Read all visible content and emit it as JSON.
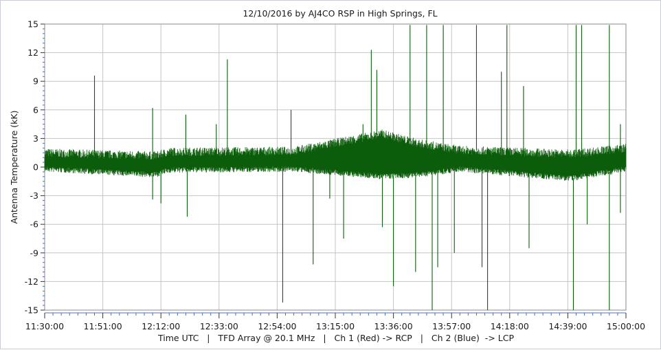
{
  "chart_data": {
    "type": "line",
    "title": "12/10/2016  by  AJ4CO RSP  in  High Springs, FL",
    "ylabel": "Antenna Temperature (kK)",
    "xlabel": "Time UTC   |   TFD Array @ 20.1 MHz   |   Ch 1 (Red) -> RCP   |   Ch 2 (Blue)  -> LCP",
    "ylim": [
      -15,
      15
    ],
    "yticks": [
      15,
      12,
      9,
      6,
      3,
      0,
      -3,
      -6,
      -9,
      -12,
      -15
    ],
    "ytick_labels": [
      "15",
      "12",
      "9",
      "6",
      "3",
      "0",
      "-3",
      "-6",
      "-9",
      "-12",
      "-15"
    ],
    "xlim_minutes": [
      690,
      900
    ],
    "xticks_minutes": [
      690,
      711,
      732,
      753,
      774,
      795,
      816,
      837,
      858,
      879,
      900
    ],
    "xtick_labels": [
      "11:30:00",
      "11:51:00",
      "12:12:00",
      "12:33:00",
      "12:54:00",
      "13:15:00",
      "13:36:00",
      "13:57:00",
      "14:18:00",
      "14:39:00",
      "15:00:00"
    ],
    "grid": true,
    "series": [
      {
        "color": "#0b5d0b",
        "baseline_kK": [
          {
            "t": "11:30:00",
            "low": -0.2,
            "high": 1.5
          },
          {
            "t": "12:10:00",
            "low": -0.8,
            "high": 1.2
          },
          {
            "t": "12:15:00",
            "low": -0.3,
            "high": 1.6
          },
          {
            "t": "13:00:00",
            "low": -0.2,
            "high": 1.7
          },
          {
            "t": "13:32:00",
            "low": -1.0,
            "high": 3.5
          },
          {
            "t": "13:45:00",
            "low": -0.8,
            "high": 2.5
          },
          {
            "t": "14:00:00",
            "low": -0.2,
            "high": 1.8
          },
          {
            "t": "14:40:00",
            "low": -1.2,
            "high": 1.4
          },
          {
            "t": "15:00:00",
            "low": -0.2,
            "high": 2.0
          }
        ],
        "spikes_kK": [
          {
            "t": "11:48:00",
            "value": 9.6
          },
          {
            "t": "12:09:00",
            "value": 6.2
          },
          {
            "t": "12:09:00",
            "value": -3.4
          },
          {
            "t": "12:12:00",
            "value": -3.8
          },
          {
            "t": "12:21:00",
            "value": 5.5
          },
          {
            "t": "12:21:30",
            "value": -5.2
          },
          {
            "t": "12:36:00",
            "value": 11.3
          },
          {
            "t": "12:32:00",
            "value": 4.5
          },
          {
            "t": "12:56:00",
            "value": -14.2
          },
          {
            "t": "12:59:00",
            "value": 6.0
          },
          {
            "t": "13:07:00",
            "value": -10.2
          },
          {
            "t": "13:13:00",
            "value": -3.3
          },
          {
            "t": "13:18:00",
            "value": -7.5
          },
          {
            "t": "13:25:00",
            "value": 4.5
          },
          {
            "t": "13:28:00",
            "value": 12.3
          },
          {
            "t": "13:30:00",
            "value": 10.2
          },
          {
            "t": "13:32:00",
            "value": -6.3
          },
          {
            "t": "13:36:00",
            "value": -12.5
          },
          {
            "t": "13:42:00",
            "value": 14.9
          },
          {
            "t": "13:44:00",
            "value": -11.0
          },
          {
            "t": "13:48:00",
            "value": 14.9
          },
          {
            "t": "13:50:00",
            "value": -15.0
          },
          {
            "t": "13:52:00",
            "value": -10.5
          },
          {
            "t": "13:54:00",
            "value": 14.9
          },
          {
            "t": "13:58:00",
            "value": -9.0
          },
          {
            "t": "14:06:00",
            "value": 14.9
          },
          {
            "t": "14:08:00",
            "value": -10.5
          },
          {
            "t": "14:10:00",
            "value": -15.0
          },
          {
            "t": "14:15:00",
            "value": 10.0
          },
          {
            "t": "14:17:00",
            "value": 14.9
          },
          {
            "t": "14:23:00",
            "value": 8.5
          },
          {
            "t": "14:25:00",
            "value": -8.5
          },
          {
            "t": "14:42:00",
            "value": 14.9
          },
          {
            "t": "14:41:00",
            "value": -15.0
          },
          {
            "t": "14:44:00",
            "value": 14.9
          },
          {
            "t": "14:46:00",
            "value": -6.0
          },
          {
            "t": "14:54:00",
            "value": 14.9
          },
          {
            "t": "14:54:00",
            "value": -15.0
          },
          {
            "t": "14:58:00",
            "value": 4.5
          },
          {
            "t": "14:58:00",
            "value": -4.8
          }
        ]
      }
    ]
  }
}
